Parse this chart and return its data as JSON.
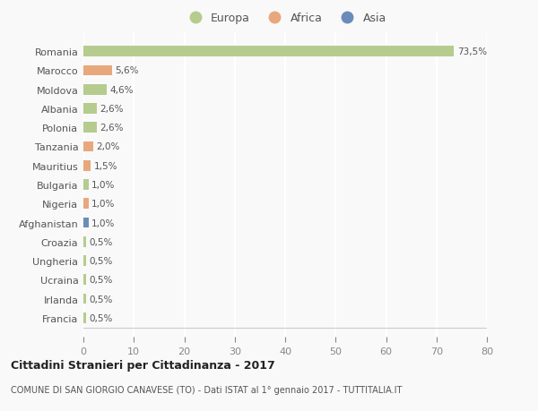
{
  "countries": [
    "Romania",
    "Marocco",
    "Moldova",
    "Albania",
    "Polonia",
    "Tanzania",
    "Mauritius",
    "Bulgaria",
    "Nigeria",
    "Afghanistan",
    "Croazia",
    "Ungheria",
    "Ucraina",
    "Irlanda",
    "Francia"
  ],
  "values": [
    73.5,
    5.6,
    4.6,
    2.6,
    2.6,
    2.0,
    1.5,
    1.0,
    1.0,
    1.0,
    0.5,
    0.5,
    0.5,
    0.5,
    0.5
  ],
  "labels": [
    "73,5%",
    "5,6%",
    "4,6%",
    "2,6%",
    "2,6%",
    "2,0%",
    "1,5%",
    "1,0%",
    "1,0%",
    "1,0%",
    "0,5%",
    "0,5%",
    "0,5%",
    "0,5%",
    "0,5%"
  ],
  "continents": [
    "Europa",
    "Africa",
    "Europa",
    "Europa",
    "Europa",
    "Africa",
    "Africa",
    "Europa",
    "Africa",
    "Asia",
    "Europa",
    "Europa",
    "Europa",
    "Europa",
    "Europa"
  ],
  "colors": {
    "Europa": "#b5cc8e",
    "Africa": "#e8a87c",
    "Asia": "#6b8cba"
  },
  "xlim": [
    0,
    80
  ],
  "xticks": [
    0,
    10,
    20,
    30,
    40,
    50,
    60,
    70,
    80
  ],
  "title": "Cittadini Stranieri per Cittadinanza - 2017",
  "subtitle": "COMUNE DI SAN GIORGIO CANAVESE (TO) - Dati ISTAT al 1° gennaio 2017 - TUTTITALIA.IT",
  "bg_color": "#f9f9f9",
  "grid_color": "#ffffff",
  "bar_height": 0.55
}
